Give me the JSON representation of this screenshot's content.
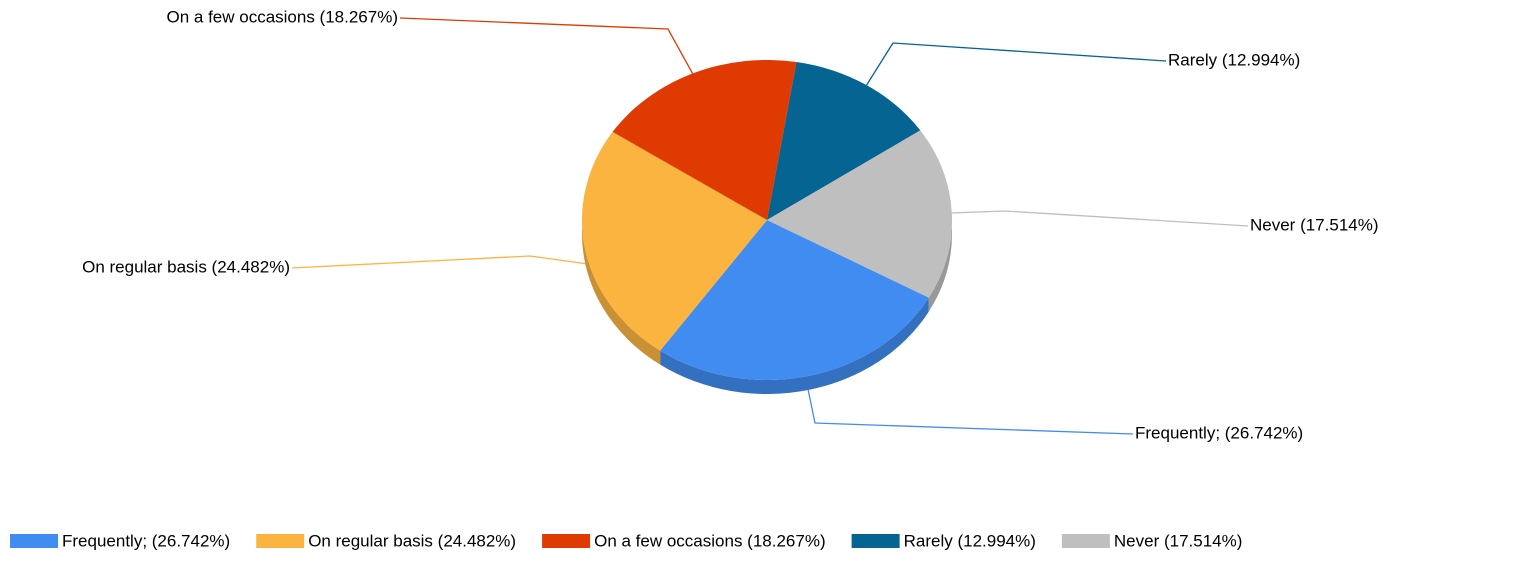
{
  "chart_data": {
    "type": "pie",
    "categories": [
      "Frequently; (26.742%)",
      "On regular basis (24.482%)",
      "On a few occasions (18.267%)",
      "Rarely (12.994%)",
      "Never (17.514%)"
    ],
    "values": [
      26.742,
      24.482,
      18.267,
      12.994,
      17.514
    ],
    "colors": [
      "#418cf0",
      "#fcb441",
      "#df3a02",
      "#056492",
      "#bfbfbf"
    ],
    "legend": "bottom"
  }
}
